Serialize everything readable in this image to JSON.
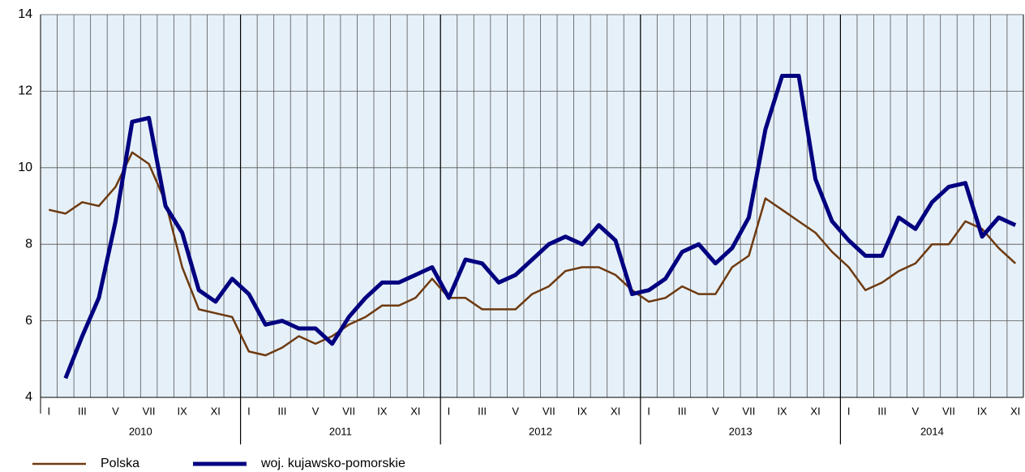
{
  "chart_data": {
    "type": "line",
    "categories": [
      "I",
      null,
      "III",
      null,
      "V",
      null,
      "VII",
      null,
      "IX",
      null,
      "XI",
      null,
      "I",
      null,
      "III",
      null,
      "V",
      null,
      "VII",
      null,
      "IX",
      null,
      "XI",
      null,
      "I",
      null,
      "III",
      null,
      "V",
      null,
      "VII",
      null,
      "IX",
      null,
      "XI",
      null,
      "I",
      null,
      "III",
      null,
      "V",
      null,
      "VII",
      null,
      "IX",
      null,
      "XI",
      null,
      "I",
      null,
      "III",
      null,
      "V",
      null,
      "VII",
      null,
      "IX",
      null,
      "XI"
    ],
    "groups": [
      "2010",
      "2011",
      "2012",
      "2013",
      "2014"
    ],
    "series": [
      {
        "name": "Polska",
        "color": "#6e3a10",
        "values": [
          8.9,
          8.8,
          9.1,
          9.0,
          9.5,
          10.4,
          10.1,
          9.1,
          7.4,
          6.3,
          6.2,
          6.1,
          5.2,
          5.1,
          5.3,
          5.6,
          5.4,
          5.6,
          5.9,
          6.1,
          6.4,
          6.4,
          6.6,
          7.1,
          6.6,
          6.6,
          6.3,
          6.3,
          6.3,
          6.7,
          6.9,
          7.3,
          7.4,
          7.4,
          7.2,
          6.8,
          6.5,
          6.6,
          6.9,
          6.7,
          6.7,
          7.4,
          7.7,
          9.2,
          8.9,
          8.6,
          8.3,
          7.8,
          7.4,
          6.8,
          7.0,
          7.3,
          7.5,
          8.0,
          8.0,
          8.6,
          8.4,
          7.9,
          7.5
        ]
      },
      {
        "name": "woj. kujawsko-pomorskie",
        "color": "#000080",
        "values": [
          null,
          4.5,
          5.6,
          6.6,
          8.6,
          11.2,
          11.3,
          9.0,
          8.3,
          6.8,
          6.5,
          7.1,
          6.7,
          5.9,
          6.0,
          5.8,
          5.8,
          5.4,
          6.1,
          6.6,
          7.0,
          7.0,
          7.2,
          7.4,
          6.6,
          7.6,
          7.5,
          7.0,
          7.2,
          7.6,
          8.0,
          8.2,
          8.0,
          8.5,
          8.1,
          6.7,
          6.8,
          7.1,
          7.8,
          8.0,
          7.5,
          7.9,
          8.7,
          11.0,
          12.4,
          12.4,
          9.7,
          8.6,
          8.1,
          7.7,
          7.7,
          8.7,
          8.4,
          9.1,
          9.5,
          9.6,
          8.2,
          8.7,
          8.5
        ]
      }
    ],
    "ylim": [
      4,
      14
    ],
    "yticks": [
      4,
      6,
      8,
      10,
      12,
      14
    ],
    "grid": true
  }
}
